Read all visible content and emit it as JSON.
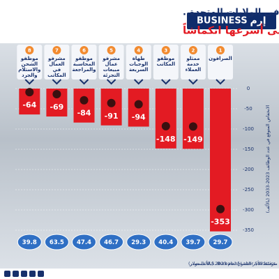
{
  "brand": {
    "name": "BUSINESS",
    "logo": "إرم"
  },
  "chart_data": {
    "type": "bar",
    "title": "مشهد الوظائف في الولايات المتحدة..",
    "subtitle": "تعرف على أسرعها انكماشاً",
    "ranks": [
      "1",
      "2",
      "3",
      "4",
      "5",
      "6",
      "7",
      "8"
    ],
    "categories": [
      "الصرافون",
      "ممثلو خدمة العملاء",
      "موظفو المكاتب",
      "طهاة الوجبات السريعة",
      "مشرفو عمال مبيعات التجزئة",
      "موظفو المحاسبة والمراجعة",
      "مشرفو العمال في المكاتب",
      "موظفو الشحن والاستلام والجرد"
    ],
    "values": [
      -353,
      -149,
      -148,
      -94,
      -91,
      -84,
      -69,
      -64
    ],
    "color": "#e31b23",
    "wages": [
      29.7,
      39.7,
      40.4,
      29.3,
      46.7,
      47.4,
      63.5,
      39.8
    ],
    "wage_color": "#2f6fc4",
    "ylim": [
      0,
      -350
    ],
    "yticks": [
      0,
      -50,
      -100,
      -150,
      -200,
      -250,
      -300,
      -350
    ],
    "grid": true,
    "y_label": "الانخفاض المتوقع في عدد الوظائف 2023-2033 (بالألف)",
    "wage_note": "متوسط الأجر السنوي لعام 2023 (بالألف دولار)",
    "source": "المصدر: U.S. Bureau of Labor Statistics"
  }
}
